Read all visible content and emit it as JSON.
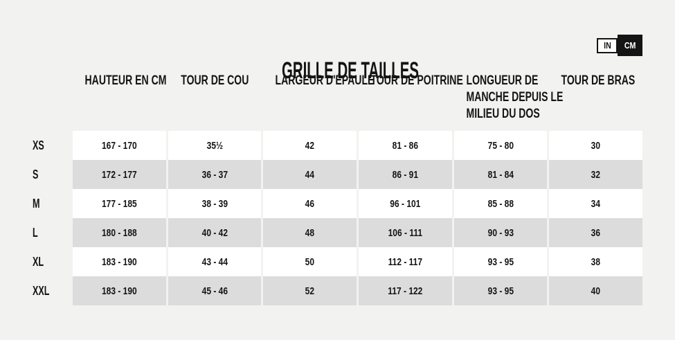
{
  "page": {
    "title": "GRILLE DE TAILLES",
    "background_color": "#f2f2f0",
    "text_color": "#141414"
  },
  "unit_toggle": {
    "options": [
      {
        "label": "IN",
        "selected": false
      },
      {
        "label": "CM",
        "selected": true
      }
    ],
    "selected_bg": "#141414",
    "selected_text": "#ffffff"
  },
  "table": {
    "columns": [
      "HAUTEUR EN CM",
      "TOUR DE COU",
      "LARGEUR D'ÉPAULE",
      "TOUR DE POITRINE",
      "LONGUEUR DE\nMANCHE DEPUIS LE\nMILIEU DU DOS",
      "TOUR DE BRAS"
    ],
    "rows": [
      {
        "size": "XS",
        "values": [
          "167 - 170",
          "35½",
          "42",
          "81 - 86",
          "75 - 80",
          "30"
        ]
      },
      {
        "size": "S",
        "values": [
          "172 - 177",
          "36 - 37",
          "44",
          "86 - 91",
          "81 - 84",
          "32"
        ]
      },
      {
        "size": "M",
        "values": [
          "177 - 185",
          "38 - 39",
          "46",
          "96 - 101",
          "85 - 88",
          "34"
        ]
      },
      {
        "size": "L",
        "values": [
          "180 - 188",
          "40 - 42",
          "48",
          "106 - 111",
          "90 - 93",
          "36"
        ]
      },
      {
        "size": "XL",
        "values": [
          "183 - 190",
          "43 - 44",
          "50",
          "112 - 117",
          "93 - 95",
          "38"
        ]
      },
      {
        "size": "XXL",
        "values": [
          "183 - 190",
          "45 - 46",
          "52",
          "117 - 122",
          "93 - 95",
          "40"
        ]
      }
    ],
    "row_colors": {
      "light": "#ffffff",
      "shaded": "#dcdcdc"
    }
  }
}
